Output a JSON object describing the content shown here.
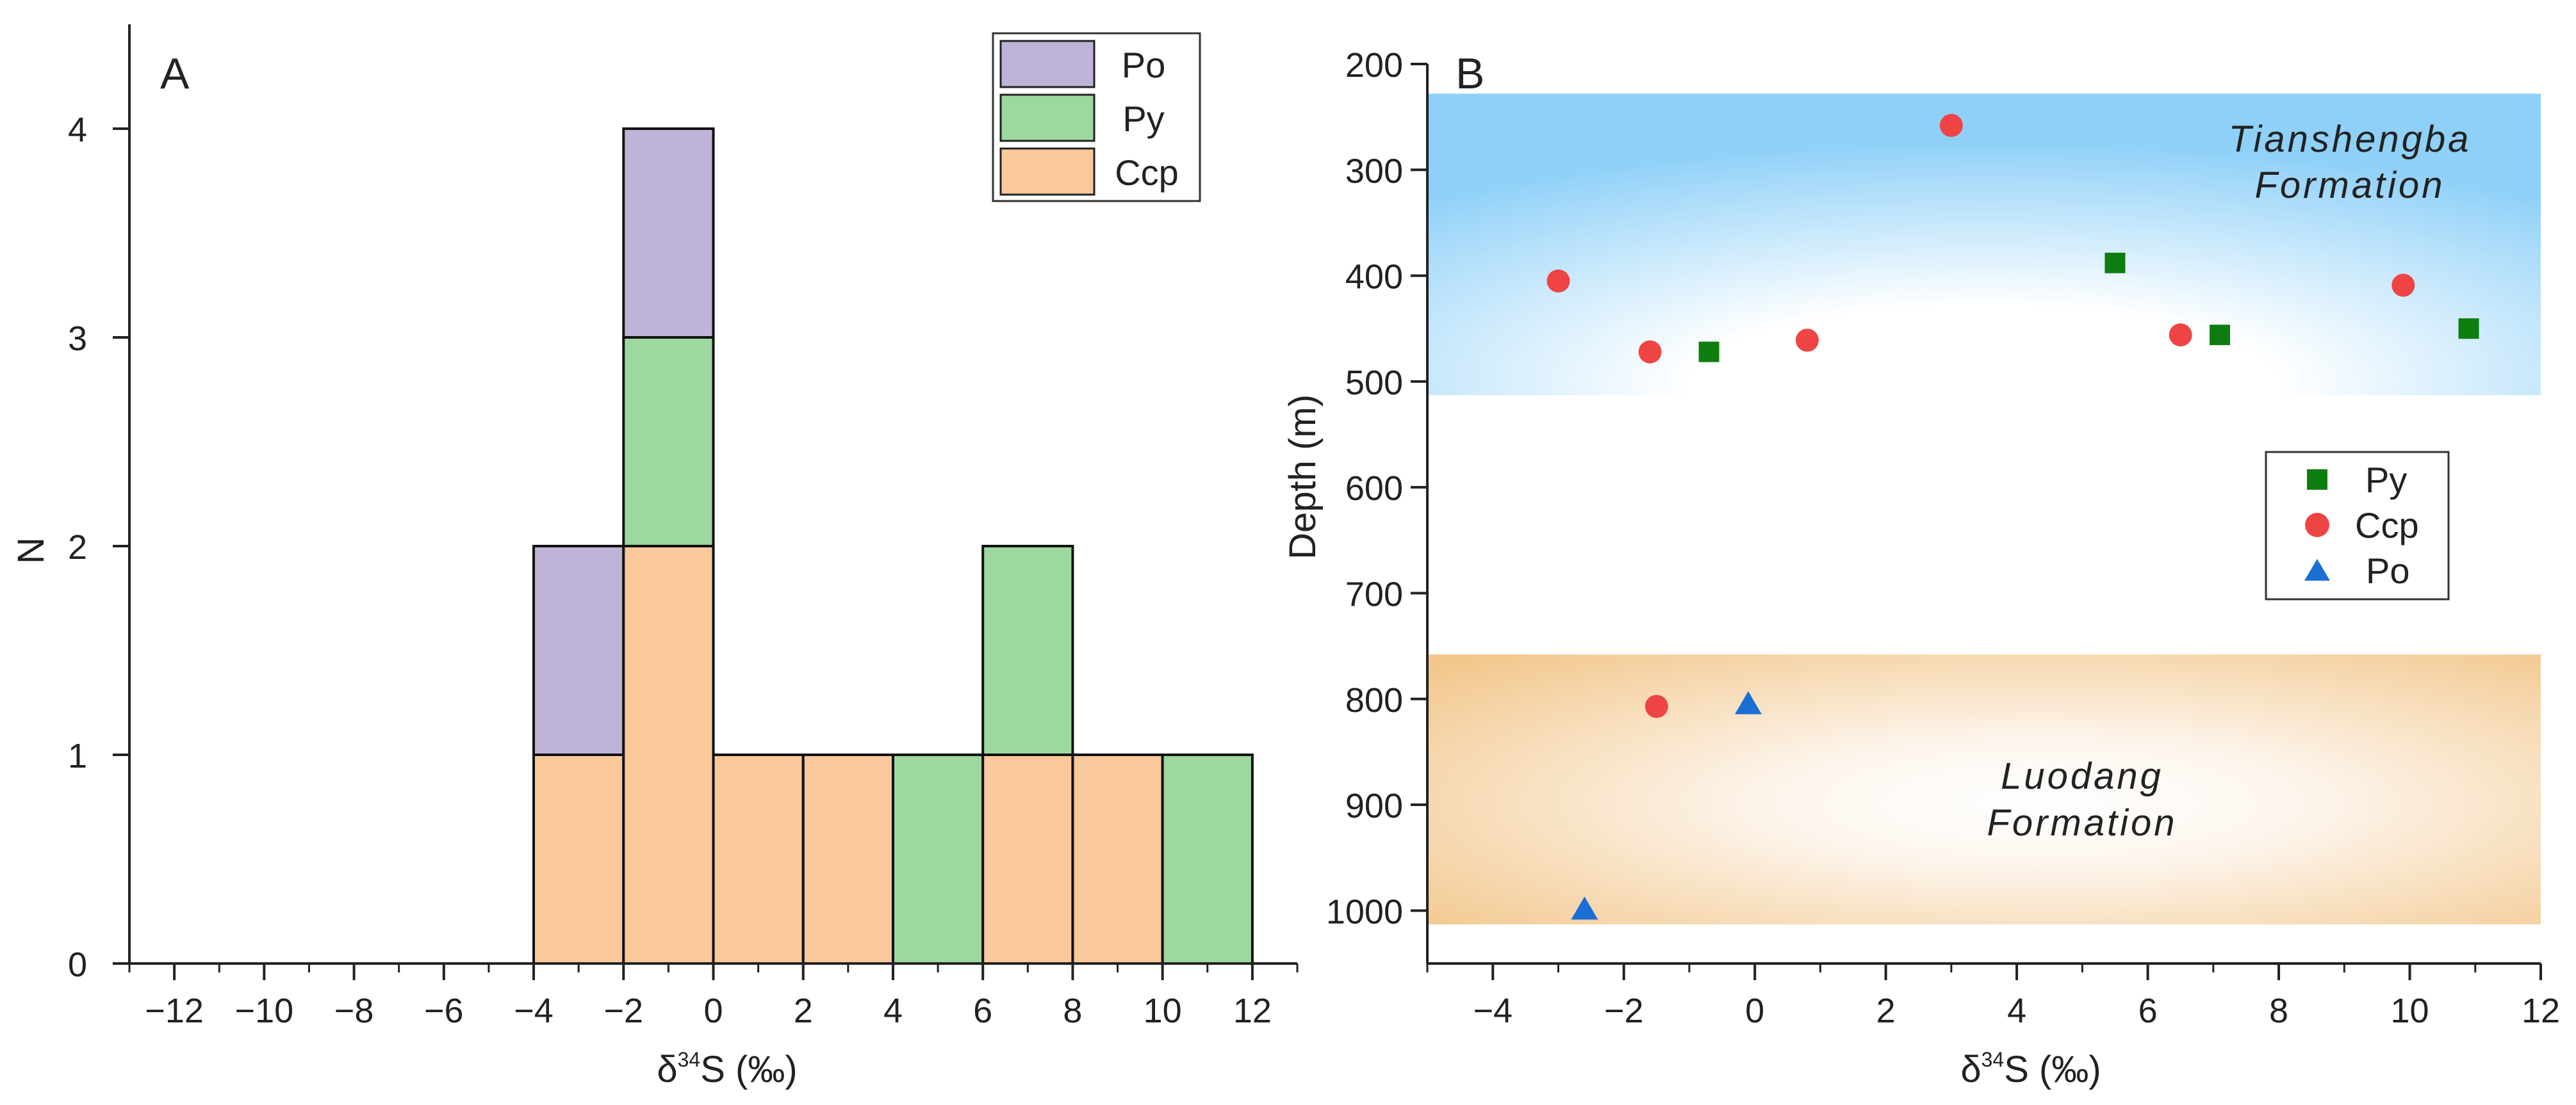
{
  "chart_data": [
    {
      "panel": "A",
      "type": "bar",
      "subtype": "stacked-histogram",
      "xlabel": "δ34S (‰)",
      "xlabel_main": "δ",
      "xlabel_sup": "34",
      "xlabel_rest": "S (‰)",
      "ylabel": "N",
      "xlim": [
        -13,
        13
      ],
      "ylim": [
        0,
        4.5
      ],
      "xticks": [
        -12,
        -10,
        -8,
        -6,
        -4,
        -2,
        0,
        2,
        4,
        6,
        8,
        10,
        12
      ],
      "xtick_labels": [
        "−12",
        "−10",
        "−8",
        "−6",
        "−4",
        "−2",
        "0",
        "2",
        "4",
        "6",
        "8",
        "10",
        "12"
      ],
      "yticks": [
        0,
        1,
        2,
        3,
        4
      ],
      "ytick_labels": [
        "0",
        "1",
        "2",
        "3",
        "4"
      ],
      "bin_edges": [
        -4,
        -2,
        0,
        2,
        4,
        6,
        8,
        10,
        12
      ],
      "series": [
        {
          "name": "Ccp",
          "color": "#F9C89B",
          "values": [
            1,
            2,
            1,
            1,
            0,
            1,
            1,
            0
          ]
        },
        {
          "name": "Py",
          "color": "#9DD89E",
          "values": [
            0,
            1,
            0,
            0,
            1,
            1,
            0,
            1
          ]
        },
        {
          "name": "Po",
          "color": "#C0B3D8",
          "values": [
            1,
            1,
            0,
            0,
            0,
            0,
            0,
            0
          ]
        }
      ],
      "legend": [
        "Po",
        "Py",
        "Ccp"
      ],
      "legend_position": "top-right"
    },
    {
      "panel": "B",
      "type": "scatter",
      "xlabel": "δ34S (‰)",
      "xlabel_main": "δ",
      "xlabel_sup": "34",
      "xlabel_rest": "S (‰)",
      "ylabel": "Depth (m)",
      "xlim": [
        -5,
        12
      ],
      "ylim": [
        200,
        1050
      ],
      "y_inverted": true,
      "xticks": [
        -4,
        -2,
        0,
        2,
        4,
        6,
        8,
        10,
        12
      ],
      "xtick_labels": [
        "−4",
        "−2",
        "0",
        "2",
        "4",
        "6",
        "8",
        "10",
        "12"
      ],
      "yticks": [
        200,
        300,
        400,
        500,
        600,
        700,
        800,
        900,
        1000
      ],
      "ytick_labels": [
        "200",
        "300",
        "400",
        "500",
        "600",
        "700",
        "800",
        "900",
        "1000"
      ],
      "series": [
        {
          "name": "Py",
          "marker": "square",
          "color": "#0E7D10",
          "x": [
            -0.7,
            5.5,
            7.1,
            10.9
          ],
          "y": [
            472,
            388,
            456,
            450
          ]
        },
        {
          "name": "Ccp",
          "marker": "circle",
          "color": "#EE4444",
          "x": [
            3.0,
            -3.0,
            -1.6,
            0.8,
            6.5,
            9.9,
            -1.5
          ],
          "y": [
            258,
            405,
            472,
            461,
            456,
            409,
            807
          ]
        },
        {
          "name": "Po",
          "marker": "triangle",
          "color": "#1A6FD4",
          "x": [
            -0.1,
            -2.6
          ],
          "y": [
            806,
            1000
          ]
        }
      ],
      "zones": [
        {
          "name": "Tianshengba Formation",
          "line1": "Tianshengba",
          "line2": "Formation",
          "depth_top": 228,
          "depth_bottom": 513,
          "color": "#8ED0F8"
        },
        {
          "name": "Luodang Formation",
          "line1": "Luodang",
          "line2": "Formation",
          "depth_top": 758,
          "depth_bottom": 1013,
          "color": "#F2C68A"
        }
      ],
      "legend": [
        "Py",
        "Ccp",
        "Po"
      ],
      "legend_position": "center-right"
    }
  ]
}
